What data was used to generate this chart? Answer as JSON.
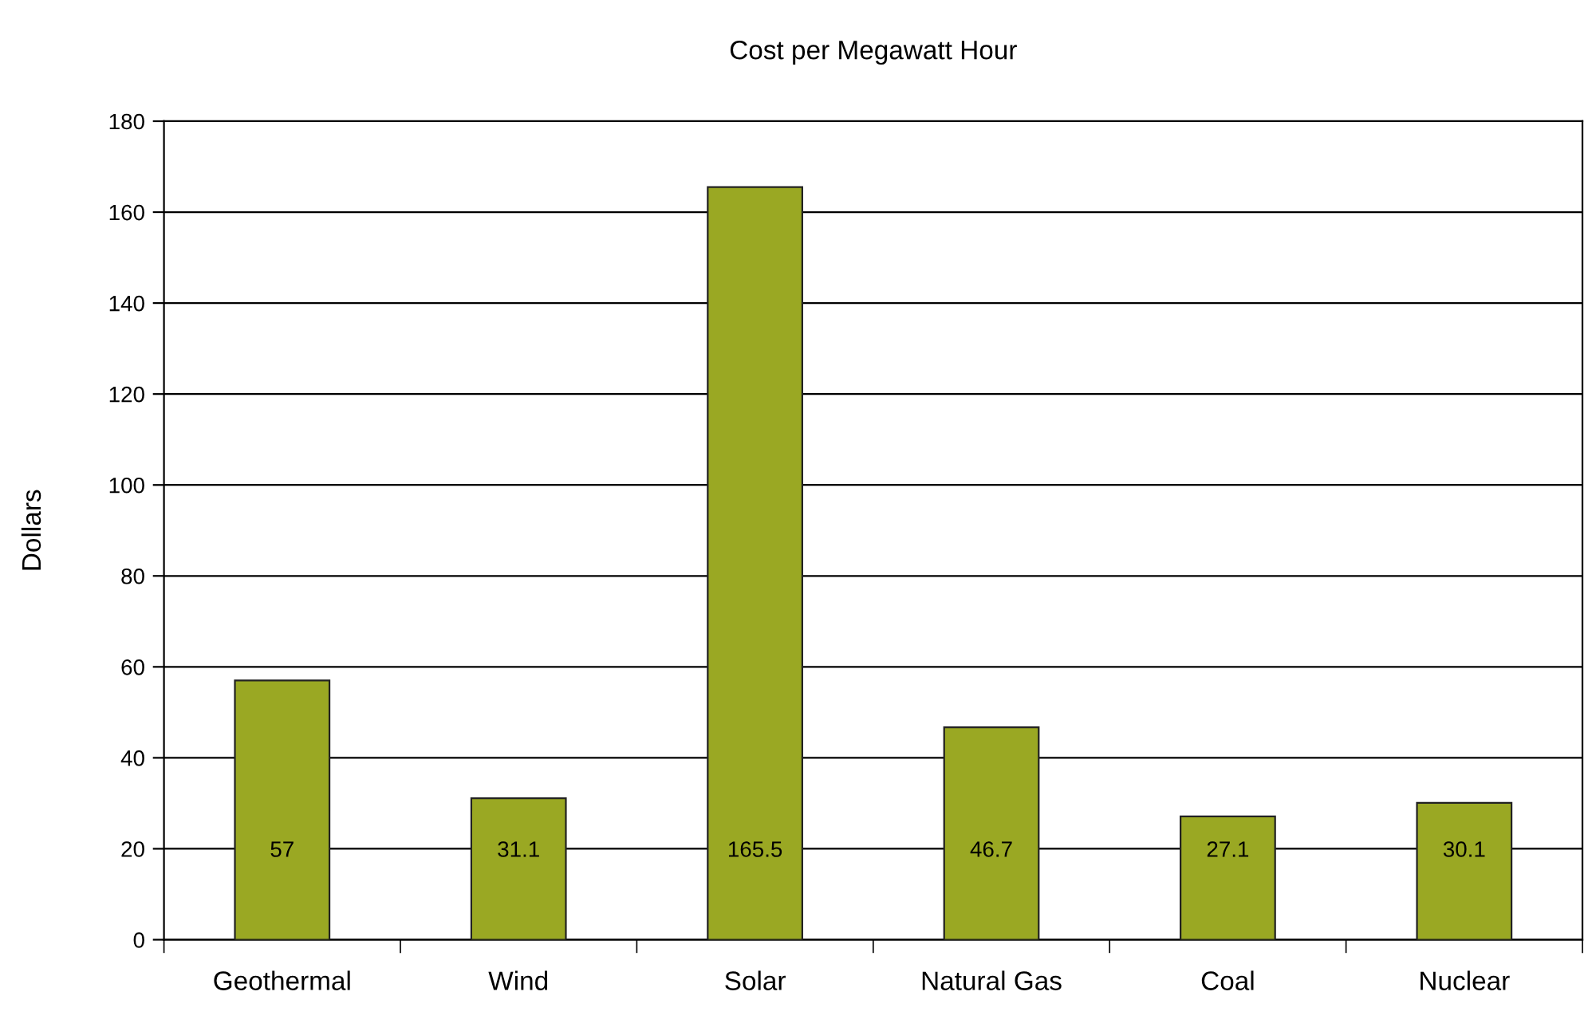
{
  "chart_data": {
    "type": "bar",
    "title": "Cost per Megawatt Hour",
    "ylabel": "Dollars",
    "categories": [
      "Geothermal",
      "Wind",
      "Solar",
      "Natural Gas",
      "Coal",
      "Nuclear"
    ],
    "values": [
      57,
      31.1,
      165.5,
      46.7,
      27.1,
      30.1
    ],
    "color": "#9aa823",
    "ylim": [
      0,
      180
    ],
    "yticks": [
      0,
      20,
      40,
      60,
      80,
      100,
      120,
      140,
      160,
      180
    ],
    "grid": "y",
    "data_labels": true
  }
}
